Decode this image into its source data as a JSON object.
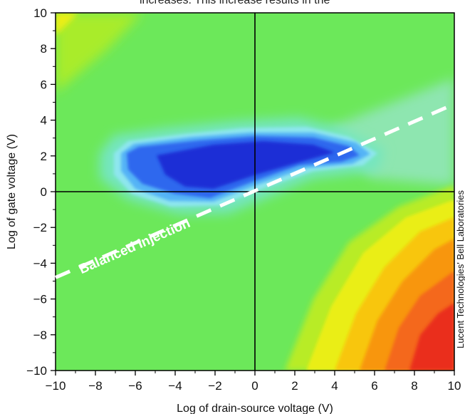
{
  "header_text": "increases. This increase results in the",
  "credit_text": "Lucent Technologies' Bell Laboratories",
  "chart_data": {
    "type": "heatmap",
    "title": "",
    "xlabel": "Log of drain-source voltage (V)",
    "ylabel": "Log of gate voltage (V)",
    "xlim": [
      -10,
      10
    ],
    "ylim": [
      -10,
      10
    ],
    "x_ticks": [
      -10,
      -8,
      -6,
      -4,
      -2,
      0,
      2,
      4,
      6,
      8,
      10
    ],
    "y_ticks": [
      -10,
      -8,
      -6,
      -4,
      -2,
      0,
      2,
      4,
      6,
      8,
      10
    ],
    "x_tick_labels": [
      "−10",
      "−8",
      "−6",
      "−4",
      "−2",
      "0",
      "2",
      "4",
      "6",
      "8",
      "10"
    ],
    "y_tick_labels": [
      "−10",
      "−8",
      "−6",
      "−4",
      "−2",
      "0",
      "2",
      "4",
      "6",
      "8",
      "10"
    ],
    "grid": false,
    "reference_lines": [
      {
        "orientation": "vertical",
        "x": 0
      },
      {
        "orientation": "horizontal",
        "y": 0
      }
    ],
    "balanced_injection_line": {
      "label": "Balanced Injection",
      "start": [
        -10,
        -4.8
      ],
      "end": [
        10,
        4.9
      ],
      "style": "dashed",
      "color": "#ffffff"
    },
    "colorscale": [
      "#1a2fd6",
      "#2f68ee",
      "#55b4f6",
      "#8ee6ee",
      "#74e6a0",
      "#6ce85a",
      "#a9ec2c",
      "#eaee15",
      "#f8b80d",
      "#f4781a",
      "#ea2f1c"
    ]
  }
}
